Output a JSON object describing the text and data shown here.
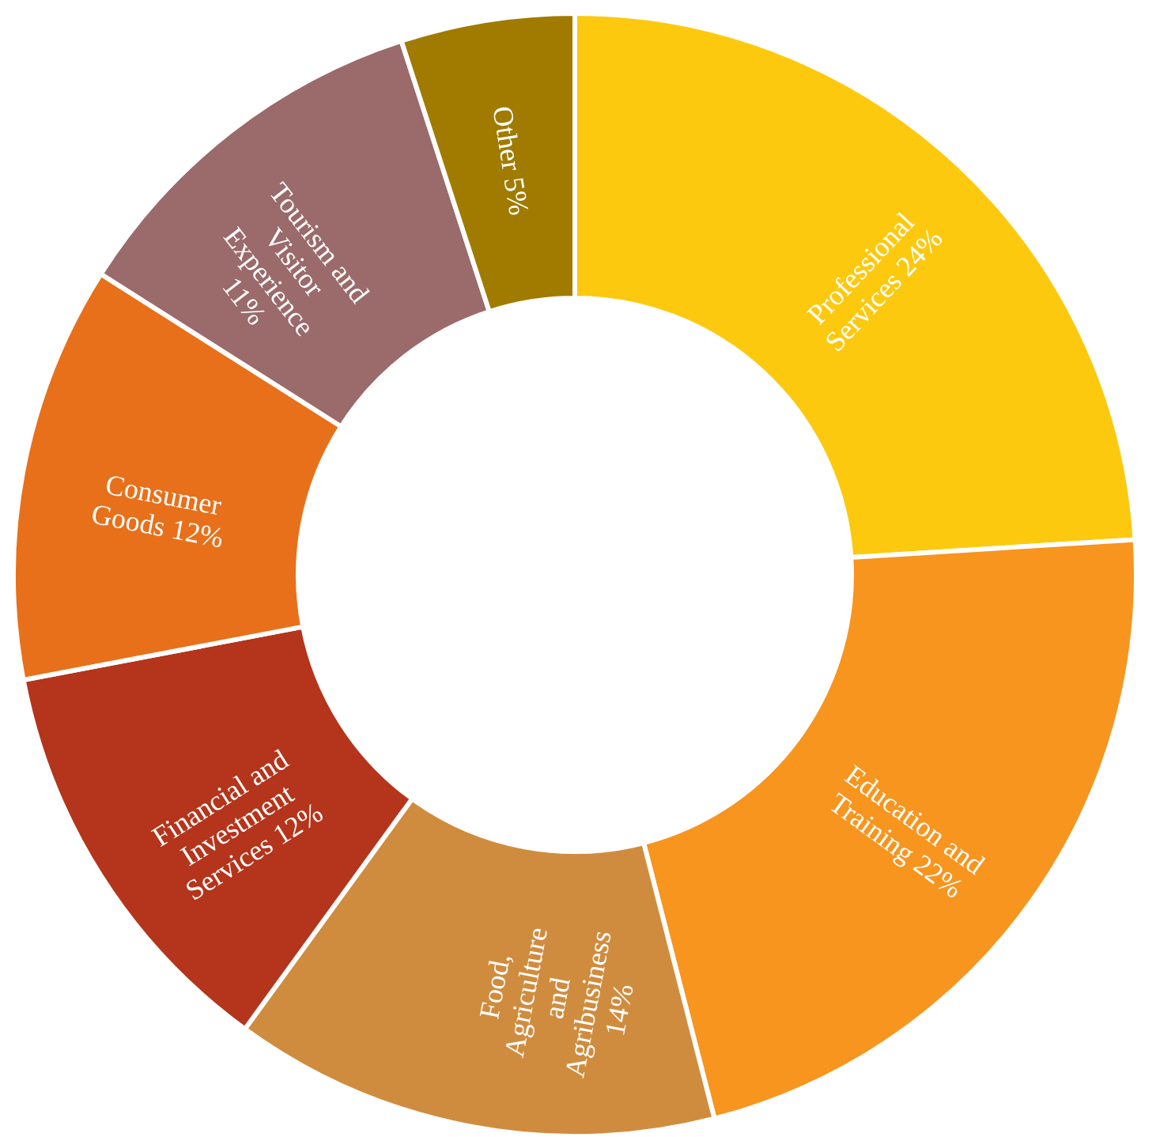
{
  "chart_data": {
    "type": "donut",
    "categories": [
      "Professional Services",
      "Education and Training",
      "Food, Agriculture and Agribusiness",
      "Financial and Investment Services",
      "Consumer Goods",
      "Tourism and Visitor Experience",
      "Other"
    ],
    "values": [
      24,
      22,
      14,
      12,
      12,
      11,
      5
    ],
    "colors": [
      "#fdc90f",
      "#f7951f",
      "#d08c3e",
      "#b4351b",
      "#e8701a",
      "#9b6a6b",
      "#a07b00"
    ],
    "value_labels": [
      "24%",
      "22%",
      "14%",
      "12%",
      "12%",
      "11%",
      "5%"
    ],
    "legend": false
  }
}
